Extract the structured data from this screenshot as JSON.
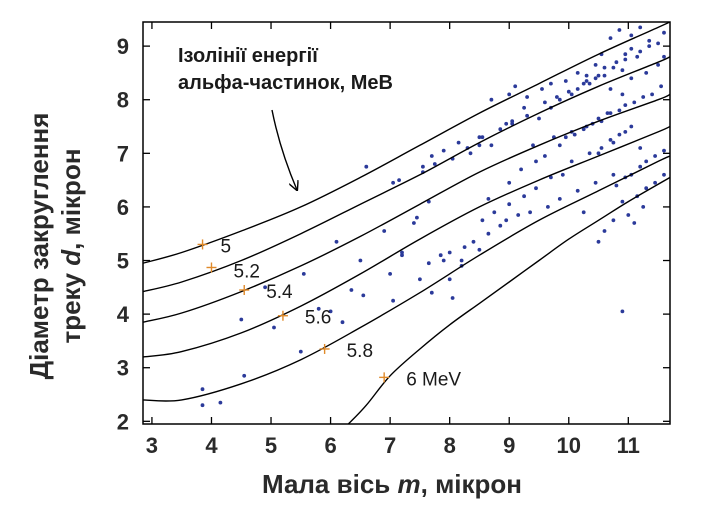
{
  "chart_data": {
    "type": "line",
    "xlabel": {
      "prefix": "Мала вісь ",
      "var": "m",
      "suffix": ",  мікрон"
    },
    "ylabel": {
      "line1": "Діаметр закруглення",
      "line2_prefix": "треку ",
      "line2_var": "d",
      "line2_suffix": ",  мікрон"
    },
    "xlim": [
      2.85,
      11.7
    ],
    "ylim": [
      1.95,
      9.45
    ],
    "xticks": [
      "3",
      "4",
      "5",
      "6",
      "7",
      "8",
      "9",
      "10",
      "11"
    ],
    "yticks": [
      "2",
      "3",
      "4",
      "5",
      "6",
      "7",
      "8",
      "9"
    ],
    "annotation": {
      "line1": "Ізолінії енергії",
      "line2": "альфа-частинок, МеВ"
    },
    "series": [
      {
        "name": "5",
        "x": [
          2.85,
          3.5,
          4.5,
          5.5,
          6.5,
          7.5,
          8.5,
          9.5,
          10.5,
          11.5,
          11.7
        ],
        "y": [
          4.95,
          5.15,
          5.55,
          6.0,
          6.55,
          7.15,
          7.75,
          8.3,
          8.85,
          9.35,
          9.45
        ]
      },
      {
        "name": "5.2",
        "x": [
          2.85,
          3.5,
          4.5,
          5.5,
          6.5,
          7.5,
          8.5,
          9.5,
          10.5,
          11.5,
          11.7
        ],
        "y": [
          4.42,
          4.6,
          5.0,
          5.5,
          6.05,
          6.6,
          7.2,
          7.75,
          8.25,
          8.7,
          8.8
        ]
      },
      {
        "name": "5.4",
        "x": [
          2.85,
          3.5,
          4.5,
          5.5,
          6.5,
          7.5,
          8.5,
          9.5,
          10.5,
          11.5,
          11.7
        ],
        "y": [
          3.85,
          4.02,
          4.42,
          4.9,
          5.45,
          6.05,
          6.65,
          7.15,
          7.6,
          8.0,
          8.1
        ]
      },
      {
        "name": "5.6",
        "x": [
          2.85,
          3.5,
          4.5,
          5.5,
          6.5,
          7.5,
          8.5,
          9.5,
          10.5,
          11.5,
          11.7
        ],
        "y": [
          3.2,
          3.3,
          3.65,
          4.15,
          4.75,
          5.4,
          6.0,
          6.5,
          6.95,
          7.4,
          7.5
        ]
      },
      {
        "name": "5.8",
        "x": [
          2.85,
          3.5,
          4.5,
          5.5,
          6.5,
          7.5,
          8.5,
          9.5,
          10.5,
          11.5,
          11.7
        ],
        "y": [
          2.4,
          2.4,
          2.7,
          3.15,
          3.75,
          4.4,
          5.1,
          5.75,
          6.3,
          6.85,
          6.95
        ]
      },
      {
        "name": "6 MeV",
        "x": [
          6.3,
          6.6,
          7.0,
          7.5,
          8.0,
          8.5,
          9.0,
          9.5,
          10.0,
          10.5,
          11.0,
          11.7
        ],
        "y": [
          1.95,
          2.3,
          2.85,
          3.35,
          3.8,
          4.2,
          4.6,
          5.0,
          5.4,
          5.75,
          6.1,
          6.55
        ]
      }
    ],
    "label_markers": [
      {
        "label": "5",
        "x": 3.85,
        "y": 5.3
      },
      {
        "label": "5.2",
        "x": 4.0,
        "y": 4.87
      },
      {
        "label": "5.4",
        "x": 4.55,
        "y": 4.45
      },
      {
        "label": "5.6",
        "x": 5.2,
        "y": 3.97
      },
      {
        "label": "5.8",
        "x": 5.9,
        "y": 3.35
      },
      {
        "label": "6 MeV",
        "x": 6.9,
        "y": 2.82
      }
    ],
    "scatter": {
      "x": [
        3.85,
        3.85,
        4.15,
        4.5,
        4.9,
        5.55,
        6.1,
        6.5,
        7.05,
        7.2,
        7.45,
        7.65,
        4.55,
        5.05,
        5.5,
        6.0,
        6.35,
        6.9,
        7.4,
        7.85,
        8.05,
        8.2,
        5.8,
        6.2,
        6.55,
        7.0,
        7.2,
        7.7,
        8.0,
        8.2,
        8.5,
        6.6,
        7.05,
        7.15,
        7.55,
        7.75,
        8.05,
        8.3,
        8.5,
        8.55,
        8.85,
        9.05,
        9.3,
        9.5,
        9.7,
        9.85,
        10.05,
        10.15,
        10.25,
        10.45,
        10.6,
        8.65,
        9.0,
        9.2,
        9.45,
        9.6,
        9.85,
        9.95,
        10.1,
        10.3,
        10.5,
        10.65,
        8.55,
        8.75,
        9.0,
        9.25,
        9.45,
        9.7,
        9.9,
        10.05,
        10.35,
        10.55,
        10.7,
        10.85,
        11.05,
        7.5,
        7.65,
        7.9,
        8.0,
        8.25,
        8.4,
        8.65,
        8.85,
        8.95,
        9.15,
        9.35,
        9.65,
        9.85,
        10.15,
        10.45,
        10.75,
        7.55,
        7.7,
        7.9,
        8.15,
        8.35,
        8.5,
        8.7,
        8.95,
        9.05,
        9.25,
        9.6,
        9.8,
        10.0,
        10.3,
        10.5,
        10.75,
        10.95,
        11.15,
        11.35,
        8.7,
        9.0,
        9.1,
        9.3,
        9.55,
        9.7,
        9.95,
        10.15,
        10.3,
        10.45,
        10.6,
        10.8,
        10.95,
        11.05,
        11.2,
        11.35,
        11.5,
        11.6,
        9.4,
        9.75,
        10.05,
        10.25,
        10.4,
        10.55,
        10.7,
        10.85,
        10.95,
        11.1,
        11.25,
        11.4,
        11.55,
        10.8,
        10.95,
        11.05,
        11.2,
        11.3,
        11.45,
        11.6,
        10.9,
        11.15,
        11.3,
        11.45,
        11.6,
        10.6,
        10.75,
        11.0,
        11.25,
        10.7,
        10.85,
        11.05,
        11.2,
        10.55,
        10.9,
        11.05,
        10.35,
        10.7,
        10.9,
        11.3,
        11.5,
        11.6,
        10.5,
        10.75,
        10.95,
        11.2,
        11.1,
        10.9,
        10.5,
        10.25
      ],
      "y": [
        2.6,
        2.3,
        2.35,
        3.9,
        4.5,
        4.75,
        5.35,
        5.0,
        4.25,
        5.1,
        5.8,
        6.1,
        2.85,
        3.75,
        3.3,
        4.05,
        4.45,
        5.55,
        5.7,
        5.1,
        4.3,
        4.9,
        4.1,
        3.85,
        4.35,
        4.75,
        5.15,
        4.4,
        4.65,
        5.0,
        5.2,
        6.75,
        6.45,
        6.5,
        6.65,
        6.8,
        6.9,
        7.1,
        7.15,
        7.3,
        7.45,
        7.55,
        7.7,
        7.65,
        7.85,
        8.0,
        8.1,
        8.2,
        8.3,
        8.4,
        8.45,
        6.15,
        6.45,
        6.7,
        6.85,
        6.95,
        7.15,
        7.3,
        7.35,
        7.5,
        7.65,
        7.75,
        5.75,
        5.9,
        6.05,
        6.2,
        6.35,
        6.55,
        6.6,
        6.85,
        7.0,
        7.1,
        7.25,
        7.35,
        7.5,
        4.65,
        4.95,
        5.0,
        5.15,
        5.25,
        5.35,
        5.5,
        5.65,
        5.75,
        5.85,
        5.9,
        6.0,
        6.15,
        6.3,
        6.45,
        6.6,
        6.75,
        6.95,
        7.05,
        7.2,
        7.0,
        7.3,
        7.15,
        7.55,
        7.6,
        7.85,
        7.95,
        8.05,
        8.15,
        8.35,
        8.45,
        8.6,
        8.75,
        8.8,
        9.0,
        8.0,
        8.1,
        8.25,
        8.05,
        8.2,
        8.3,
        8.35,
        8.5,
        8.45,
        8.65,
        8.6,
        8.7,
        8.85,
        8.95,
        8.9,
        9.1,
        9.05,
        9.25,
        7.15,
        7.3,
        7.4,
        7.45,
        7.55,
        7.6,
        7.75,
        7.8,
        7.9,
        7.95,
        8.05,
        8.1,
        8.25,
        6.4,
        6.55,
        6.6,
        6.75,
        6.85,
        6.95,
        7.05,
        6.1,
        6.2,
        6.35,
        6.45,
        6.6,
        5.55,
        5.75,
        5.85,
        6.0,
        9.15,
        9.3,
        9.2,
        9.35,
        8.85,
        8.55,
        8.4,
        8.3,
        8.2,
        8.1,
        8.5,
        8.65,
        8.8,
        7.0,
        7.2,
        7.4,
        7.1,
        5.7,
        4.05,
        5.35,
        5.9
      ]
    }
  }
}
